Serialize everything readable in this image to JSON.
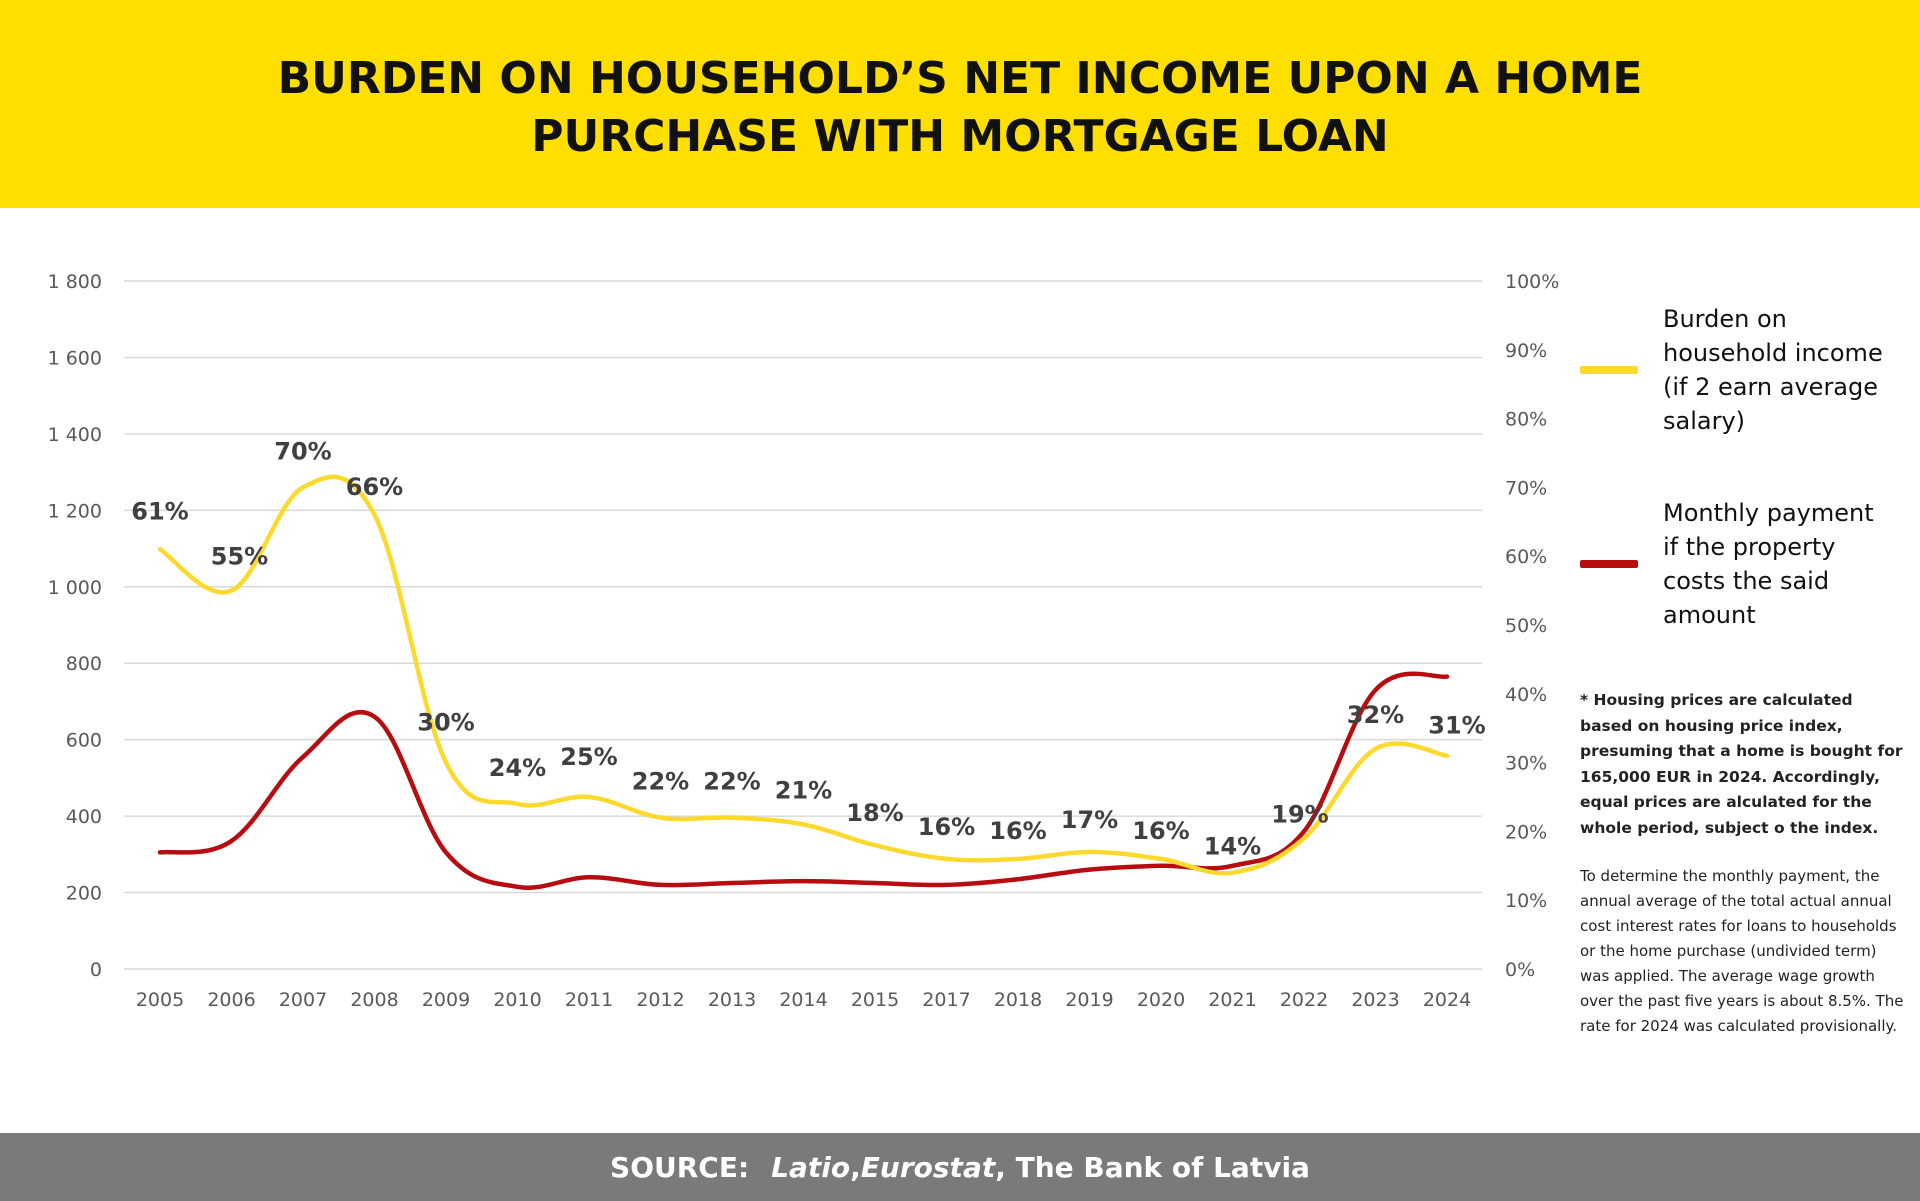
{
  "header": {
    "title_line1": "BURDEN ON HOUSEHOLD’S NET INCOME UPON A HOME",
    "title_line2": "PURCHASE WITH MORTGAGE LOAN",
    "bg_color": "#FFDF00"
  },
  "legend": {
    "items": [
      {
        "label": "Burden on household income (if 2 earn average salary)",
        "color": "#FCD92C"
      },
      {
        "label": "Monthly payment if the property costs the said amount",
        "color": "#B80D10"
      }
    ]
  },
  "notes": {
    "bold": "* Housing prices are calculated based on housing price index, presuming that a home is bought for 165,000 EUR in 2024. Accordingly, equal prices are alculated for the whole period, subject o the index.",
    "plain": "To determine the monthly payment, the annual average of the total actual annual cost interest rates for loans to households or the home purchase (undivided term) was applied. The average wage growth over the past five years is about 8.5%. The rate for 2024 was  calculated provisionally."
  },
  "footer": {
    "label": "SOURCE:",
    "source1": "Latio",
    "sep1": ", ",
    "source2": "Eurostat",
    "rest": ", The Bank of Latvia"
  },
  "chart_data": {
    "type": "line",
    "categories": [
      "2005",
      "2006",
      "2007",
      "2008",
      "2009",
      "2010",
      "2011",
      "2012",
      "2013",
      "2014",
      "2015",
      "2017",
      "2018",
      "2019",
      "2020",
      "2021",
      "2022",
      "2023",
      "2024"
    ],
    "left_axis": {
      "min": 0,
      "max": 1800,
      "ticks": [
        0,
        200,
        400,
        600,
        800,
        1000,
        1200,
        1400,
        1600,
        1800
      ],
      "tick_labels": [
        "0",
        "200",
        "400",
        "600",
        "800",
        "1 000",
        "1 200",
        "1 400",
        "1 600",
        "1 800"
      ]
    },
    "right_axis": {
      "min": 0,
      "max": 100,
      "ticks": [
        0,
        10,
        20,
        30,
        40,
        50,
        60,
        70,
        80,
        90,
        100
      ],
      "tick_labels": [
        "0%",
        "10%",
        "20%",
        "30%",
        "40%",
        "50%",
        "60%",
        "70%",
        "80%",
        "90%",
        "100%"
      ]
    },
    "grid": true,
    "legend_position": "right",
    "series": [
      {
        "name": "Burden on household income (if 2 earn average salary)",
        "axis": "right",
        "color": "#FCD92C",
        "values": [
          61,
          55,
          70,
          66,
          30,
          24,
          25,
          22,
          22,
          21,
          18,
          16,
          16,
          17,
          16,
          14,
          19,
          32,
          31
        ],
        "data_labels": [
          "61%",
          "55%",
          "70%",
          "66%",
          "30%",
          "24%",
          "25%",
          "22%",
          "22%",
          "21%",
          "18%",
          "16%",
          "16%",
          "17%",
          "16%",
          "14%",
          "19%",
          "32%",
          "31%"
        ]
      },
      {
        "name": "Monthly payment if the property costs the said amount",
        "axis": "left",
        "color": "#B80D10",
        "values": [
          305,
          335,
          555,
          660,
          305,
          215,
          240,
          220,
          225,
          230,
          225,
          220,
          235,
          260,
          270,
          270,
          360,
          730,
          765
        ]
      }
    ]
  }
}
